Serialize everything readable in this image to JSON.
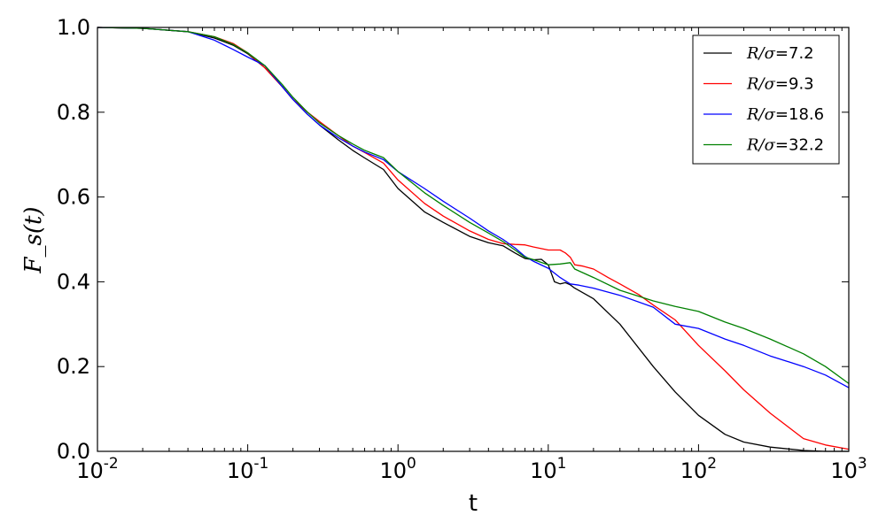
{
  "chart_data": {
    "type": "line",
    "title": "",
    "xlabel": "t",
    "ylabel": "F_s(t)",
    "xscale": "log",
    "xlim": [
      0.01,
      1000
    ],
    "ylim": [
      0.0,
      1.0
    ],
    "grid": false,
    "legend_position": "top-right",
    "x_ticks": [
      {
        "value": 0.01,
        "base": "10",
        "exp": "-2"
      },
      {
        "value": 0.1,
        "base": "10",
        "exp": "-1"
      },
      {
        "value": 1,
        "base": "10",
        "exp": "0"
      },
      {
        "value": 10,
        "base": "10",
        "exp": "1"
      },
      {
        "value": 100,
        "base": "10",
        "exp": "2"
      },
      {
        "value": 1000,
        "base": "10",
        "exp": "3"
      }
    ],
    "y_ticks": [
      {
        "value": 0.0,
        "label": "0.0"
      },
      {
        "value": 0.2,
        "label": "0.2"
      },
      {
        "value": 0.4,
        "label": "0.4"
      },
      {
        "value": 0.6,
        "label": "0.6"
      },
      {
        "value": 0.8,
        "label": "0.8"
      },
      {
        "value": 1.0,
        "label": "1.0"
      }
    ],
    "series": [
      {
        "name": "R/σ=7.2",
        "name_math": "R/σ",
        "name_value": "=7.2",
        "color": "#000000",
        "x": [
          0.01,
          0.02,
          0.04,
          0.06,
          0.08,
          0.1,
          0.13,
          0.17,
          0.2,
          0.25,
          0.3,
          0.4,
          0.5,
          0.6,
          0.8,
          1,
          1.5,
          2,
          3,
          4,
          5,
          6,
          7,
          8,
          9,
          10,
          11,
          12,
          13,
          14,
          15,
          20,
          30,
          50,
          70,
          100,
          150,
          200,
          300,
          500,
          700,
          1000
        ],
        "y": [
          1.0,
          0.998,
          0.99,
          0.975,
          0.958,
          0.938,
          0.905,
          0.86,
          0.83,
          0.795,
          0.77,
          0.735,
          0.71,
          0.692,
          0.665,
          0.62,
          0.565,
          0.54,
          0.507,
          0.492,
          0.485,
          0.468,
          0.455,
          0.452,
          0.453,
          0.44,
          0.4,
          0.395,
          0.398,
          0.393,
          0.385,
          0.36,
          0.3,
          0.2,
          0.14,
          0.085,
          0.04,
          0.022,
          0.01,
          0.002,
          0.0,
          0.0
        ]
      },
      {
        "name": "R/σ=9.3",
        "name_math": "R/σ",
        "name_value": "=9.3",
        "color": "#ff0000",
        "x": [
          0.01,
          0.02,
          0.04,
          0.06,
          0.08,
          0.1,
          0.13,
          0.17,
          0.2,
          0.25,
          0.3,
          0.4,
          0.5,
          0.6,
          0.8,
          1,
          1.5,
          2,
          3,
          4,
          5,
          6,
          7,
          8,
          10,
          12,
          13,
          14,
          15,
          17,
          20,
          25,
          30,
          40,
          50,
          70,
          100,
          150,
          200,
          300,
          500,
          700,
          1000
        ],
        "y": [
          1.0,
          0.998,
          0.99,
          0.978,
          0.962,
          0.94,
          0.905,
          0.86,
          0.83,
          0.8,
          0.778,
          0.745,
          0.72,
          0.705,
          0.68,
          0.64,
          0.585,
          0.555,
          0.52,
          0.5,
          0.49,
          0.488,
          0.487,
          0.482,
          0.475,
          0.475,
          0.468,
          0.458,
          0.44,
          0.437,
          0.43,
          0.41,
          0.395,
          0.37,
          0.345,
          0.31,
          0.25,
          0.19,
          0.145,
          0.09,
          0.03,
          0.015,
          0.005
        ]
      },
      {
        "name": "R/σ=18.6",
        "name_math": "R/σ",
        "name_value": "=18.6",
        "color": "#0000ff",
        "x": [
          0.01,
          0.02,
          0.04,
          0.06,
          0.08,
          0.1,
          0.13,
          0.17,
          0.2,
          0.25,
          0.3,
          0.4,
          0.5,
          0.6,
          0.8,
          1,
          1.5,
          2,
          3,
          4,
          5,
          6,
          7,
          8,
          10,
          12,
          14,
          16,
          20,
          30,
          50,
          70,
          100,
          150,
          200,
          300,
          500,
          700,
          1000
        ],
        "y": [
          1.0,
          0.998,
          0.99,
          0.97,
          0.948,
          0.93,
          0.91,
          0.86,
          0.83,
          0.795,
          0.77,
          0.74,
          0.72,
          0.706,
          0.688,
          0.66,
          0.62,
          0.59,
          0.55,
          0.52,
          0.5,
          0.48,
          0.46,
          0.448,
          0.432,
          0.41,
          0.395,
          0.392,
          0.385,
          0.368,
          0.34,
          0.3,
          0.29,
          0.265,
          0.25,
          0.225,
          0.2,
          0.18,
          0.15
        ]
      },
      {
        "name": "R/σ=32.2",
        "name_math": "R/σ",
        "name_value": "=32.2",
        "color": "#008000",
        "x": [
          0.01,
          0.02,
          0.04,
          0.06,
          0.08,
          0.1,
          0.13,
          0.17,
          0.2,
          0.25,
          0.3,
          0.4,
          0.5,
          0.6,
          0.8,
          1,
          1.5,
          2,
          3,
          4,
          5,
          6,
          7,
          8,
          10,
          12,
          14,
          15,
          20,
          30,
          50,
          70,
          100,
          150,
          200,
          300,
          500,
          700,
          1000
        ],
        "y": [
          1.0,
          0.998,
          0.99,
          0.978,
          0.96,
          0.94,
          0.91,
          0.865,
          0.835,
          0.8,
          0.775,
          0.745,
          0.725,
          0.71,
          0.693,
          0.66,
          0.61,
          0.58,
          0.54,
          0.515,
          0.495,
          0.475,
          0.458,
          0.452,
          0.44,
          0.442,
          0.445,
          0.43,
          0.41,
          0.38,
          0.355,
          0.342,
          0.33,
          0.305,
          0.29,
          0.265,
          0.23,
          0.2,
          0.16
        ]
      }
    ]
  }
}
